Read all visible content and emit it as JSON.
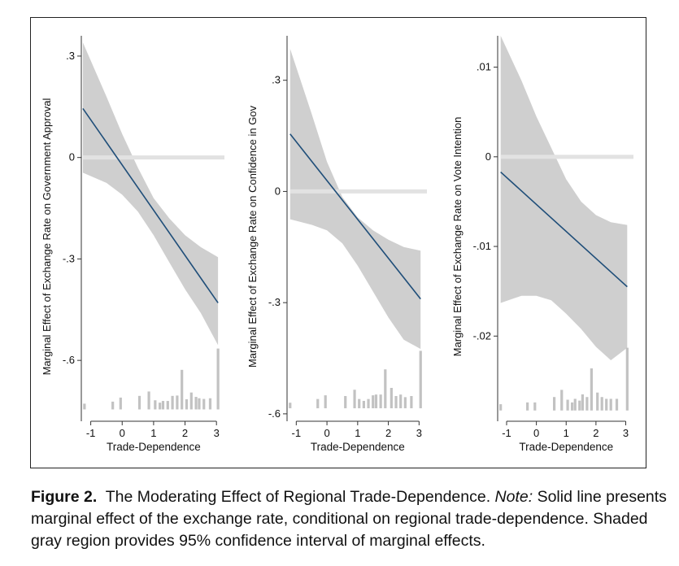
{
  "figure": {
    "label": "Figure 2.",
    "title": "The Moderating Effect of Regional Trade-Dependence.",
    "note_label": "Note:",
    "note_text": "Solid line presents marginal effect of the exchange rate, conditional on regional trade-dependence. Shaded gray region provides 95% confidence interval of marginal effects."
  },
  "colors": {
    "line": "#1f4e79",
    "ci_band": "#cfcfcf",
    "zero_line": "#e2e2e2",
    "hist": "#c2c2c2",
    "axis": "#333333"
  },
  "chart_data": [
    {
      "type": "line",
      "xlabel": "Trade-Dependence",
      "ylabel": "Marginal Effect of Exchange Rate on Government Approval",
      "xlim": [
        -1.3,
        3.15
      ],
      "ylim": [
        -0.78,
        0.36
      ],
      "xticks": [
        -1,
        0,
        1,
        2,
        3
      ],
      "xtick_labels": [
        "-1",
        "0",
        "1",
        "2",
        "3"
      ],
      "yticks": [
        0.3,
        0,
        -0.3,
        -0.6
      ],
      "ytick_labels": [
        ".3",
        "0",
        "-.3",
        "-.6"
      ],
      "grid": false,
      "zero_line": 0,
      "line": {
        "x": [
          -1.25,
          3.05
        ],
        "y": [
          0.145,
          -0.43
        ]
      },
      "ci": {
        "x": [
          -1.25,
          -0.5,
          0,
          0.5,
          1,
          1.5,
          2,
          2.5,
          3.05
        ],
        "upper": [
          0.34,
          0.18,
          0.07,
          -0.03,
          -0.12,
          -0.18,
          -0.23,
          -0.265,
          -0.295
        ],
        "lower": [
          -0.045,
          -0.075,
          -0.11,
          -0.16,
          -0.23,
          -0.31,
          -0.39,
          -0.46,
          -0.555
        ]
      },
      "histogram": {
        "baseline": -0.745,
        "x": [
          -1.2,
          -0.3,
          -0.05,
          0.55,
          0.85,
          1.05,
          1.2,
          1.3,
          1.45,
          1.6,
          1.75,
          1.9,
          2.05,
          2.2,
          2.35,
          2.45,
          2.6,
          2.8,
          3.05
        ],
        "y": [
          -0.728,
          -0.722,
          -0.71,
          -0.705,
          -0.692,
          -0.718,
          -0.725,
          -0.72,
          -0.72,
          -0.705,
          -0.704,
          -0.628,
          -0.715,
          -0.695,
          -0.708,
          -0.712,
          -0.714,
          -0.712,
          -0.565
        ]
      }
    },
    {
      "type": "line",
      "xlabel": "Trade-Dependence",
      "ylabel": "Marginal Effect of Exchange Rate on Confidence in Gov",
      "xlim": [
        -1.3,
        3.15
      ],
      "ylim": [
        -0.62,
        0.42
      ],
      "xticks": [
        -1,
        0,
        1,
        2,
        3
      ],
      "xtick_labels": [
        "-1",
        "0",
        "1",
        "2",
        "3"
      ],
      "yticks": [
        0.3,
        0,
        -0.3,
        -0.6
      ],
      "ytick_labels": [
        ".3",
        "0",
        "-.3",
        "-.6"
      ],
      "grid": false,
      "zero_line": 0,
      "line": {
        "x": [
          -1.2,
          3.05
        ],
        "y": [
          0.155,
          -0.29
        ]
      },
      "ci": {
        "x": [
          -1.2,
          -0.5,
          0,
          0.5,
          1,
          1.5,
          2,
          2.5,
          3.05
        ],
        "upper": [
          0.385,
          0.21,
          0.08,
          -0.015,
          -0.07,
          -0.105,
          -0.13,
          -0.15,
          -0.16
        ],
        "lower": [
          -0.075,
          -0.09,
          -0.105,
          -0.14,
          -0.2,
          -0.27,
          -0.34,
          -0.4,
          -0.425
        ]
      },
      "histogram": {
        "baseline": -0.585,
        "x": [
          -1.2,
          -0.3,
          -0.05,
          0.6,
          0.9,
          1.05,
          1.2,
          1.35,
          1.5,
          1.6,
          1.75,
          1.9,
          2.1,
          2.25,
          2.4,
          2.55,
          2.75,
          3.05
        ],
        "y": [
          -0.57,
          -0.56,
          -0.55,
          -0.552,
          -0.535,
          -0.56,
          -0.565,
          -0.56,
          -0.55,
          -0.548,
          -0.548,
          -0.48,
          -0.53,
          -0.552,
          -0.548,
          -0.555,
          -0.552,
          -0.43
        ]
      }
    },
    {
      "type": "line",
      "xlabel": "Trade-Dependence",
      "ylabel": "Marginal Effect of Exchange Rate on Vote Intention",
      "xlim": [
        -1.3,
        3.15
      ],
      "ylim": [
        -0.0295,
        0.0135
      ],
      "xticks": [
        -1,
        0,
        1,
        2,
        3
      ],
      "xtick_labels": [
        "-1",
        "0",
        "1",
        "2",
        "3"
      ],
      "yticks": [
        0.01,
        0,
        -0.01,
        -0.02
      ],
      "ytick_labels": [
        ".01",
        "0",
        "-.01",
        "-.02"
      ],
      "grid": false,
      "zero_line": 0,
      "line": {
        "x": [
          -1.2,
          3.05
        ],
        "y": [
          -0.0017,
          -0.0145
        ]
      },
      "ci": {
        "x": [
          -1.2,
          -0.5,
          0,
          0.5,
          1,
          1.5,
          2,
          2.5,
          3.05
        ],
        "upper": [
          0.0135,
          0.0085,
          0.0045,
          0.001,
          -0.0025,
          -0.005,
          -0.0065,
          -0.0073,
          -0.0076
        ],
        "lower": [
          -0.0163,
          -0.0155,
          -0.0155,
          -0.016,
          -0.0175,
          -0.0192,
          -0.0212,
          -0.0227,
          -0.0213
        ]
      },
      "histogram": {
        "baseline": -0.0283,
        "x": [
          -1.2,
          -0.3,
          -0.05,
          0.6,
          0.85,
          1.05,
          1.2,
          1.3,
          1.45,
          1.55,
          1.7,
          1.85,
          2.05,
          2.2,
          2.35,
          2.5,
          2.7,
          3.05
        ],
        "y": [
          -0.0276,
          -0.0274,
          -0.0274,
          -0.0268,
          -0.026,
          -0.0271,
          -0.0274,
          -0.027,
          -0.0272,
          -0.0265,
          -0.0268,
          -0.0236,
          -0.0263,
          -0.0268,
          -0.027,
          -0.027,
          -0.027,
          -0.0213
        ]
      }
    }
  ]
}
